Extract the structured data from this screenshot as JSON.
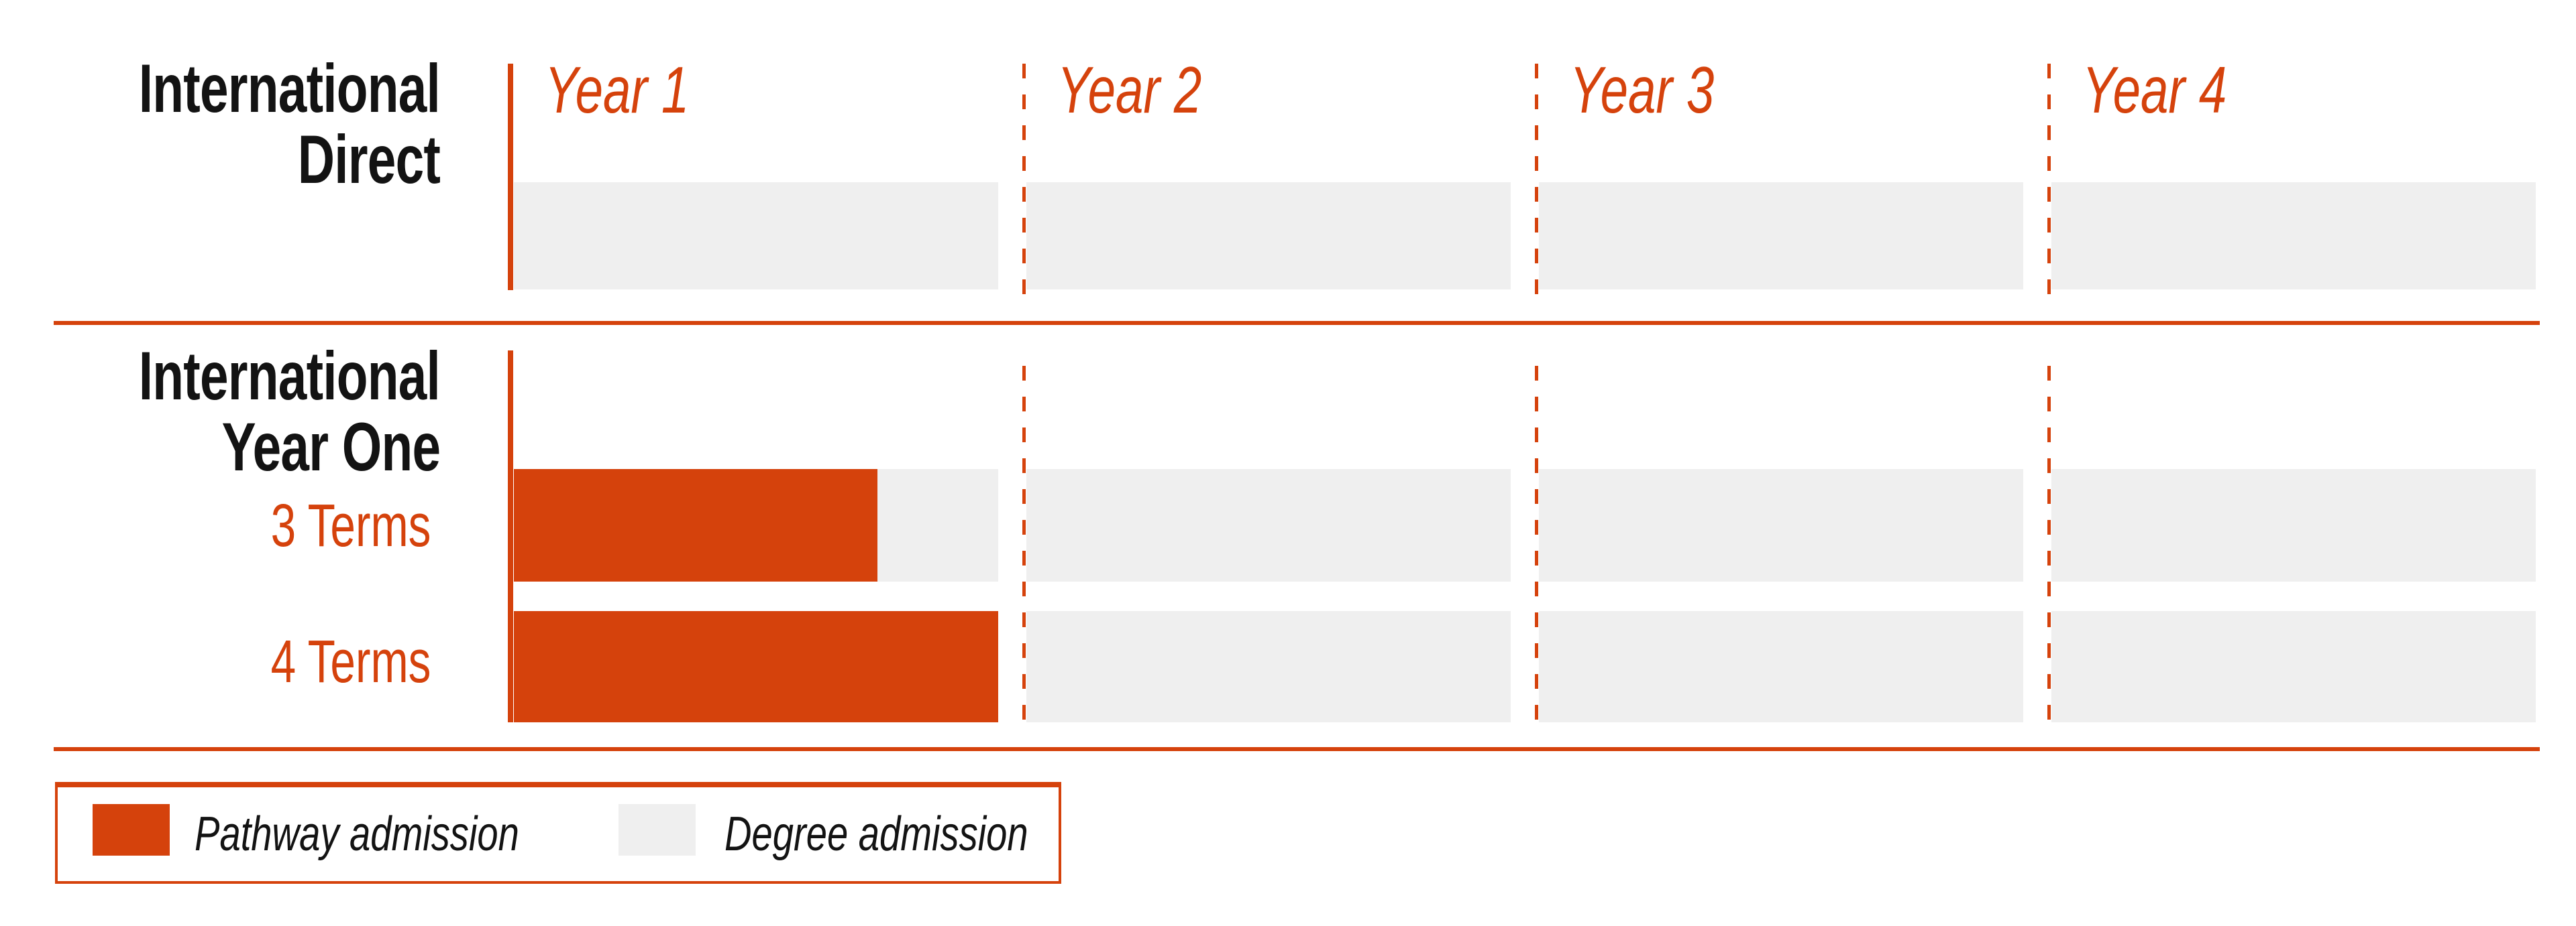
{
  "palette": {
    "orange": "#D5420C",
    "light_gray": "#EFEFEF",
    "ink": "#131313",
    "background": "#FFFFFF"
  },
  "columns": [
    {
      "label": "Year 1"
    },
    {
      "label": "Year 2"
    },
    {
      "label": "Year 3"
    },
    {
      "label": "Year 4"
    }
  ],
  "programs": {
    "direct": {
      "line1": "International",
      "line2": "Direct"
    },
    "year_one": {
      "line1": "International",
      "line2": "Year One",
      "options": [
        {
          "label": "3 Terms"
        },
        {
          "label": "4 Terms"
        }
      ]
    }
  },
  "chart_data": {
    "type": "gantt",
    "x_unit": "academic years",
    "x_range": [
      0,
      4
    ],
    "columns": [
      "Year 1",
      "Year 2",
      "Year 3",
      "Year 4"
    ],
    "column_separator_style": "dashed orange vertical lines, solid orange axis at Year 1 start",
    "rows": [
      {
        "program": "International Direct",
        "option": null,
        "pathway_start_year": null,
        "pathway_end_year": null,
        "degree_start_year": 0,
        "degree_end_year": 4
      },
      {
        "program": "International Year One",
        "option": "3 Terms",
        "pathway_start_year": 0,
        "pathway_end_year": 0.75,
        "degree_start_year": 0.75,
        "degree_end_year": 4
      },
      {
        "program": "International Year One",
        "option": "4 Terms",
        "pathway_start_year": 0,
        "pathway_end_year": 1,
        "degree_start_year": 1,
        "degree_end_year": 4
      }
    ],
    "legend": [
      {
        "label": "Pathway admission",
        "color": "#D5420C"
      },
      {
        "label": "Degree admission",
        "color": "#EFEFEF"
      }
    ],
    "legend_position": "bottom-left",
    "grid": false
  }
}
